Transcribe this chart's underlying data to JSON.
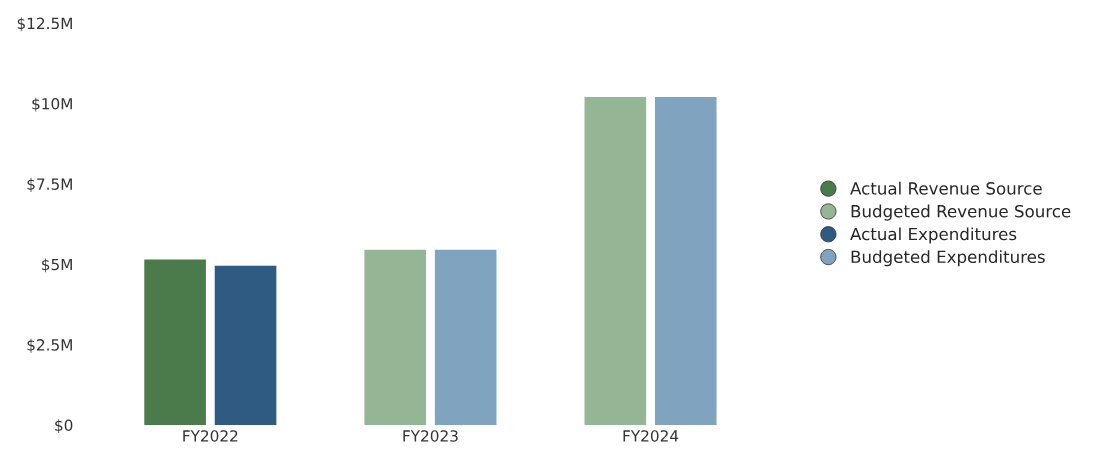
{
  "chart_data": {
    "type": "bar",
    "categories": [
      "FY2022",
      "FY2023",
      "FY2024"
    ],
    "series": [
      {
        "name": "Actual Revenue Source",
        "color": "#4b7b4b",
        "values": [
          5.15,
          null,
          null
        ]
      },
      {
        "name": "Budgeted Revenue Source",
        "color": "#95b695",
        "values": [
          null,
          5.45,
          10.2
        ]
      },
      {
        "name": "Actual Expenditures",
        "color": "#2f5b82",
        "values": [
          4.95,
          null,
          null
        ]
      },
      {
        "name": "Budgeted Expenditures",
        "color": "#80a4c0",
        "values": [
          null,
          5.45,
          10.2
        ]
      }
    ],
    "ylim": [
      0,
      12.5
    ],
    "yticks": [
      {
        "value": 0,
        "label": "$0"
      },
      {
        "value": 2.5,
        "label": "$2.5M"
      },
      {
        "value": 5,
        "label": "$5M"
      },
      {
        "value": 7.5,
        "label": "$7.5M"
      },
      {
        "value": 10,
        "label": "$10M"
      },
      {
        "value": 12.5,
        "label": "$12.5M"
      }
    ],
    "legend": "right",
    "marker": "circle"
  }
}
